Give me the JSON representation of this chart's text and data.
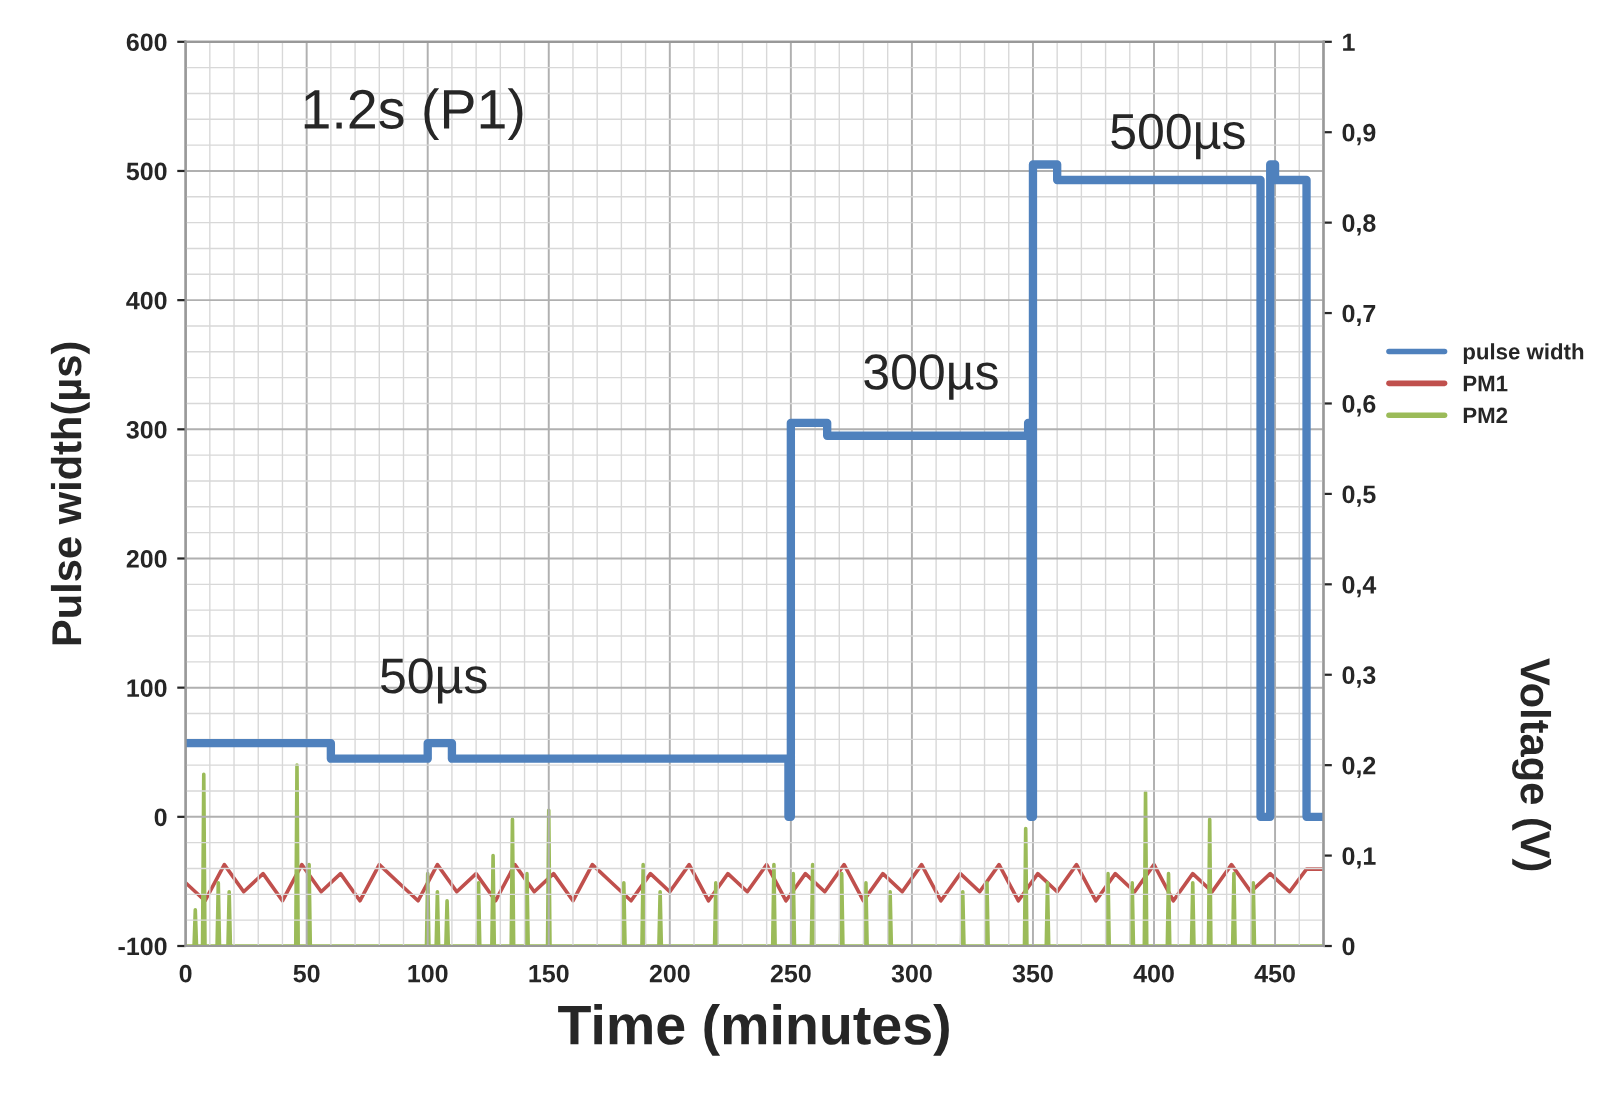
{
  "chart_data": {
    "type": "line",
    "title": "1.2s (P1)",
    "xlabel": "Time (minutes)",
    "ylabel": "Pulse width(µs)",
    "y2label": "Voltage (V)",
    "annotations": [
      "50µs",
      "300µs",
      "500µs"
    ],
    "xlim": [
      0,
      470
    ],
    "xticks": [
      0,
      50,
      100,
      150,
      200,
      250,
      300,
      350,
      400,
      450
    ],
    "ylim": [
      -100,
      600
    ],
    "yticks": [
      -100,
      0,
      100,
      200,
      300,
      400,
      500,
      600
    ],
    "y2lim": [
      0,
      1
    ],
    "y2ticks": [
      0,
      {
        "value": 0.1,
        "label": "0,1"
      },
      {
        "value": 0.2,
        "label": "0,2"
      },
      {
        "value": 0.3,
        "label": "0,3"
      },
      {
        "value": 0.4,
        "label": "0,4"
      },
      {
        "value": 0.5,
        "label": "0,5"
      },
      {
        "value": 0.6,
        "label": "0,6"
      },
      {
        "value": 0.7,
        "label": "0,7"
      },
      {
        "value": 0.8,
        "label": "0,8"
      },
      {
        "value": 0.9,
        "label": "0,9"
      },
      1
    ],
    "grid": true,
    "legend": "right",
    "series": [
      {
        "name": "pulse width",
        "type": "step",
        "color": "#4f81bd",
        "x": [
          0,
          60,
          100,
          110,
          248,
          249,
          250,
          265,
          348,
          349,
          350,
          360,
          444,
          448,
          450,
          463,
          470
        ],
        "values": [
          57,
          45,
          57,
          45,
          45,
          0,
          305,
          295,
          305,
          0,
          505,
          493,
          0,
          505,
          493,
          0,
          0
        ]
      },
      {
        "name": "PM1",
        "axis": "y2",
        "color": "#c0504d",
        "x": [
          0,
          8,
          16,
          24,
          32,
          40,
          48,
          56,
          64,
          72,
          80,
          88,
          96,
          104,
          112,
          120,
          128,
          136,
          144,
          152,
          160,
          168,
          176,
          184,
          192,
          200,
          208,
          216,
          224,
          232,
          240,
          248,
          256,
          264,
          272,
          280,
          288,
          296,
          304,
          312,
          320,
          328,
          336,
          344,
          352,
          360,
          368,
          376,
          384,
          392,
          400,
          408,
          416,
          424,
          432,
          440,
          448,
          456,
          463,
          470
        ],
        "values": [
          0.07,
          0.05,
          0.09,
          0.06,
          0.08,
          0.05,
          0.09,
          0.06,
          0.08,
          0.05,
          0.09,
          0.07,
          0.05,
          0.09,
          0.06,
          0.08,
          0.05,
          0.09,
          0.06,
          0.08,
          0.05,
          0.09,
          0.07,
          0.05,
          0.08,
          0.06,
          0.09,
          0.05,
          0.08,
          0.06,
          0.09,
          0.05,
          0.08,
          0.06,
          0.09,
          0.05,
          0.08,
          0.06,
          0.09,
          0.05,
          0.08,
          0.06,
          0.09,
          0.05,
          0.08,
          0.06,
          0.09,
          0.05,
          0.08,
          0.06,
          0.09,
          0.05,
          0.08,
          0.06,
          0.09,
          0.06,
          0.08,
          0.06,
          0.085,
          0.085
        ]
      },
      {
        "name": "PM2",
        "axis": "y2",
        "color": "#9bbb59",
        "x": [
          0,
          3.5,
          4,
          4.5,
          7,
          7.5,
          8,
          13,
          13.5,
          14,
          17.5,
          18,
          18.5,
          45.5,
          46,
          46.5,
          50.5,
          51,
          51.5,
          99.5,
          100,
          100.5,
          103.5,
          104,
          104.5,
          107.5,
          108,
          108.5,
          120.5,
          121,
          121.5,
          126.5,
          127,
          127.5,
          134.5,
          135,
          135.5,
          140.5,
          141,
          141.5,
          149.5,
          150,
          150.5,
          180.5,
          181,
          181.5,
          188.5,
          189,
          189.5,
          195.5,
          196,
          196.5,
          218.5,
          219,
          219.5,
          242.5,
          243,
          243.5,
          250.5,
          251,
          251.5,
          258.5,
          259,
          259.5,
          270.5,
          271,
          271.5,
          280.5,
          281,
          281.5,
          290.5,
          291,
          291.5,
          320.5,
          321,
          321.5,
          330.5,
          331,
          331.5,
          346.5,
          347,
          347.5,
          355.5,
          356,
          356.5,
          380.5,
          381,
          381.5,
          390.5,
          391,
          391.5,
          396,
          396.5,
          397,
          405.5,
          406,
          406.5,
          415.5,
          416,
          416.5,
          422.5,
          423,
          423.5,
          432.5,
          433,
          433.5,
          440.5,
          441,
          441.5,
          470
        ],
        "values": [
          0,
          0,
          0.04,
          0,
          0,
          0.19,
          0,
          0,
          0.07,
          0,
          0,
          0.06,
          0,
          0,
          0.2,
          0,
          0,
          0.09,
          0,
          0,
          0.08,
          0,
          0,
          0.06,
          0,
          0,
          0.05,
          0,
          0,
          0.07,
          0,
          0,
          0.1,
          0,
          0,
          0.14,
          0,
          0,
          0.08,
          0,
          0,
          0.15,
          0,
          0,
          0.07,
          0,
          0,
          0.09,
          0,
          0,
          0.06,
          0,
          0,
          0.07,
          0,
          0,
          0.09,
          0,
          0,
          0.08,
          0,
          0,
          0.09,
          0,
          0,
          0.08,
          0,
          0,
          0.07,
          0,
          0,
          0.06,
          0,
          0,
          0.06,
          0,
          0,
          0.07,
          0,
          0,
          0.13,
          0,
          0,
          0.07,
          0,
          0,
          0.08,
          0,
          0,
          0.07,
          0,
          0,
          0.17,
          0,
          0,
          0.08,
          0,
          0,
          0.07,
          0,
          0,
          0.14,
          0,
          0,
          0.08,
          0,
          0,
          0.07,
          0,
          0
        ]
      }
    ]
  }
}
